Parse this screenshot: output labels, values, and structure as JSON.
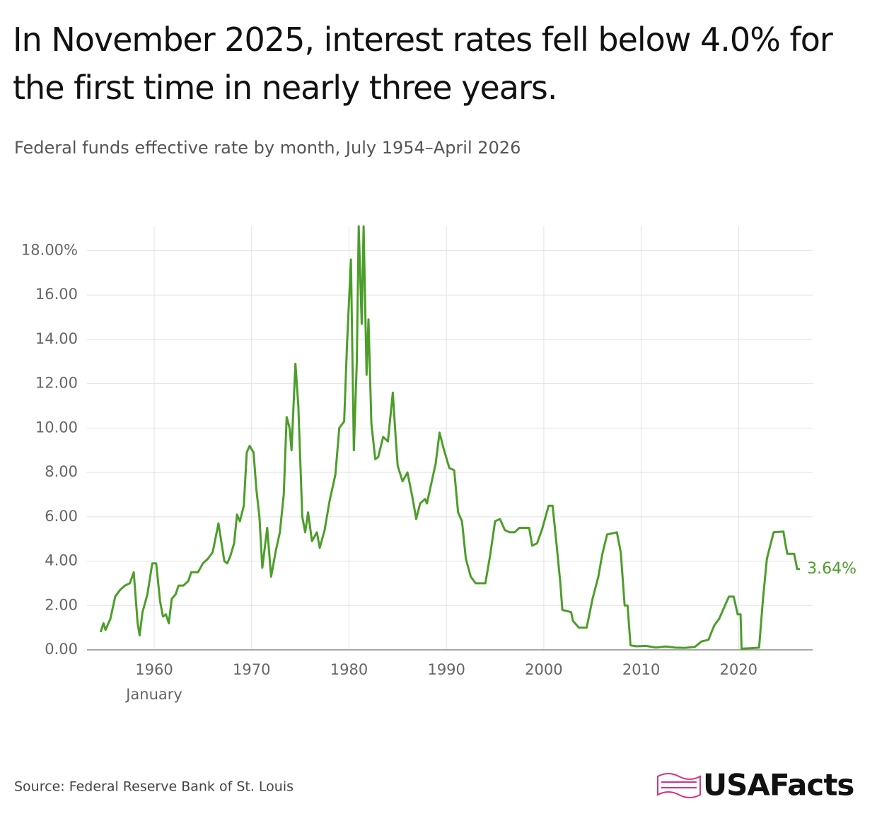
{
  "chart_data": {
    "type": "line",
    "title": "In November 2025, interest rates fell below 4.0% for the first time in nearly three years.",
    "subtitle": "Federal funds effective rate by month, July 1954–April 2026",
    "source": "Source: Federal Reserve Bank of St. Louis",
    "brand": "USAFacts",
    "x_tick_note": "January",
    "x": [
      1954.5,
      1954.8,
      1955.0,
      1955.5,
      1956.0,
      1956.5,
      1957.0,
      1957.5,
      1957.9,
      1958.3,
      1958.5,
      1958.8,
      1959.3,
      1959.8,
      1960.2,
      1960.6,
      1960.9,
      1961.2,
      1961.5,
      1961.8,
      1962.2,
      1962.5,
      1963.0,
      1963.5,
      1963.8,
      1964.5,
      1965.0,
      1965.5,
      1966.0,
      1966.6,
      1967.2,
      1967.5,
      1967.8,
      1968.2,
      1968.5,
      1968.8,
      1969.2,
      1969.5,
      1969.8,
      1970.2,
      1970.5,
      1970.8,
      1971.1,
      1971.6,
      1972.0,
      1972.5,
      1972.9,
      1973.3,
      1973.6,
      1973.9,
      1974.1,
      1974.5,
      1974.8,
      1975.2,
      1975.5,
      1975.8,
      1976.2,
      1976.7,
      1977.0,
      1977.5,
      1978.0,
      1978.6,
      1979.0,
      1979.5,
      1979.8,
      1980.2,
      1980.5,
      1980.8,
      1981.0,
      1981.3,
      1981.5,
      1981.8,
      1982.0,
      1982.3,
      1982.7,
      1983.0,
      1983.5,
      1984.0,
      1984.5,
      1984.8,
      1985.0,
      1985.5,
      1986.0,
      1986.5,
      1986.9,
      1987.3,
      1987.8,
      1988.0,
      1988.5,
      1988.9,
      1989.3,
      1989.7,
      1990.3,
      1990.8,
      1991.2,
      1991.6,
      1992.0,
      1992.5,
      1993.0,
      1993.5,
      1994.0,
      1994.5,
      1995.0,
      1995.5,
      1996.0,
      1996.5,
      1997.0,
      1997.5,
      1998.5,
      1998.8,
      1999.3,
      1999.8,
      2000.5,
      2000.9,
      2001.3,
      2001.7,
      2001.9,
      2002.8,
      2003.0,
      2003.6,
      2004.4,
      2005.0,
      2005.6,
      2006.0,
      2006.5,
      2007.5,
      2007.9,
      2008.3,
      2008.6,
      2008.9,
      2009.5,
      2010.5,
      2011.5,
      2012.5,
      2013.5,
      2014.5,
      2015.5,
      2016.2,
      2016.9,
      2017.5,
      2018.0,
      2018.5,
      2019.0,
      2019.5,
      2019.9,
      2020.2,
      2020.3,
      2021.5,
      2022.1,
      2022.5,
      2022.9,
      2023.3,
      2023.6,
      2024.6,
      2024.8,
      2025.0,
      2025.7,
      2025.9,
      2026.0,
      2026.3
    ],
    "series": [
      {
        "name": "Federal funds effective rate",
        "color": "#4c9e2a",
        "values": [
          0.8,
          1.2,
          0.9,
          1.4,
          2.4,
          2.7,
          2.9,
          3.0,
          3.5,
          1.2,
          0.65,
          1.7,
          2.5,
          3.9,
          3.9,
          2.2,
          1.5,
          1.6,
          1.2,
          2.3,
          2.5,
          2.9,
          2.9,
          3.1,
          3.5,
          3.5,
          3.9,
          4.1,
          4.4,
          5.7,
          4.0,
          3.9,
          4.2,
          4.8,
          6.1,
          5.8,
          6.5,
          8.9,
          9.2,
          8.9,
          7.2,
          6.0,
          3.7,
          5.5,
          3.3,
          4.5,
          5.3,
          7.0,
          10.5,
          10.0,
          9.0,
          12.9,
          11.0,
          6.0,
          5.3,
          6.2,
          4.9,
          5.3,
          4.6,
          5.4,
          6.7,
          7.9,
          10.0,
          10.3,
          13.8,
          17.6,
          9.0,
          13.0,
          19.1,
          14.7,
          19.1,
          12.4,
          14.9,
          10.2,
          8.6,
          8.7,
          9.6,
          9.4,
          11.6,
          9.5,
          8.3,
          7.6,
          8.0,
          6.9,
          5.9,
          6.6,
          6.8,
          6.6,
          7.6,
          8.4,
          9.8,
          9.1,
          8.2,
          8.1,
          6.2,
          5.8,
          4.1,
          3.3,
          3.0,
          3.0,
          3.0,
          4.3,
          5.8,
          5.9,
          5.4,
          5.3,
          5.3,
          5.5,
          5.5,
          4.7,
          4.8,
          5.4,
          6.5,
          6.5,
          4.8,
          3.0,
          1.8,
          1.7,
          1.3,
          1.0,
          1.0,
          2.3,
          3.3,
          4.3,
          5.2,
          5.3,
          4.4,
          2.0,
          2.0,
          0.2,
          0.16,
          0.18,
          0.1,
          0.15,
          0.1,
          0.09,
          0.13,
          0.38,
          0.45,
          1.1,
          1.4,
          1.9,
          2.4,
          2.4,
          1.6,
          1.6,
          0.05,
          0.08,
          0.1,
          2.3,
          4.1,
          4.8,
          5.3,
          5.33,
          4.8,
          4.33,
          4.33,
          3.9,
          3.64,
          3.64
        ]
      }
    ],
    "end_label": "3.64%",
    "xlim": [
      1953.1,
      2027.6
    ],
    "xticks": [
      1960,
      1970,
      1980,
      1990,
      2000,
      2010,
      2020
    ],
    "ylim": [
      0,
      19.1
    ],
    "yticks": [
      {
        "value": 0,
        "label": "0.00"
      },
      {
        "value": 2,
        "label": "2.00"
      },
      {
        "value": 4,
        "label": "4.00"
      },
      {
        "value": 6,
        "label": "6.00"
      },
      {
        "value": 8,
        "label": "8.00"
      },
      {
        "value": 10,
        "label": "10.00"
      },
      {
        "value": 12,
        "label": "12.00"
      },
      {
        "value": 14,
        "label": "14.00"
      },
      {
        "value": 16,
        "label": "16.00"
      },
      {
        "value": 18,
        "label": "18.00%"
      }
    ],
    "grid": true
  }
}
